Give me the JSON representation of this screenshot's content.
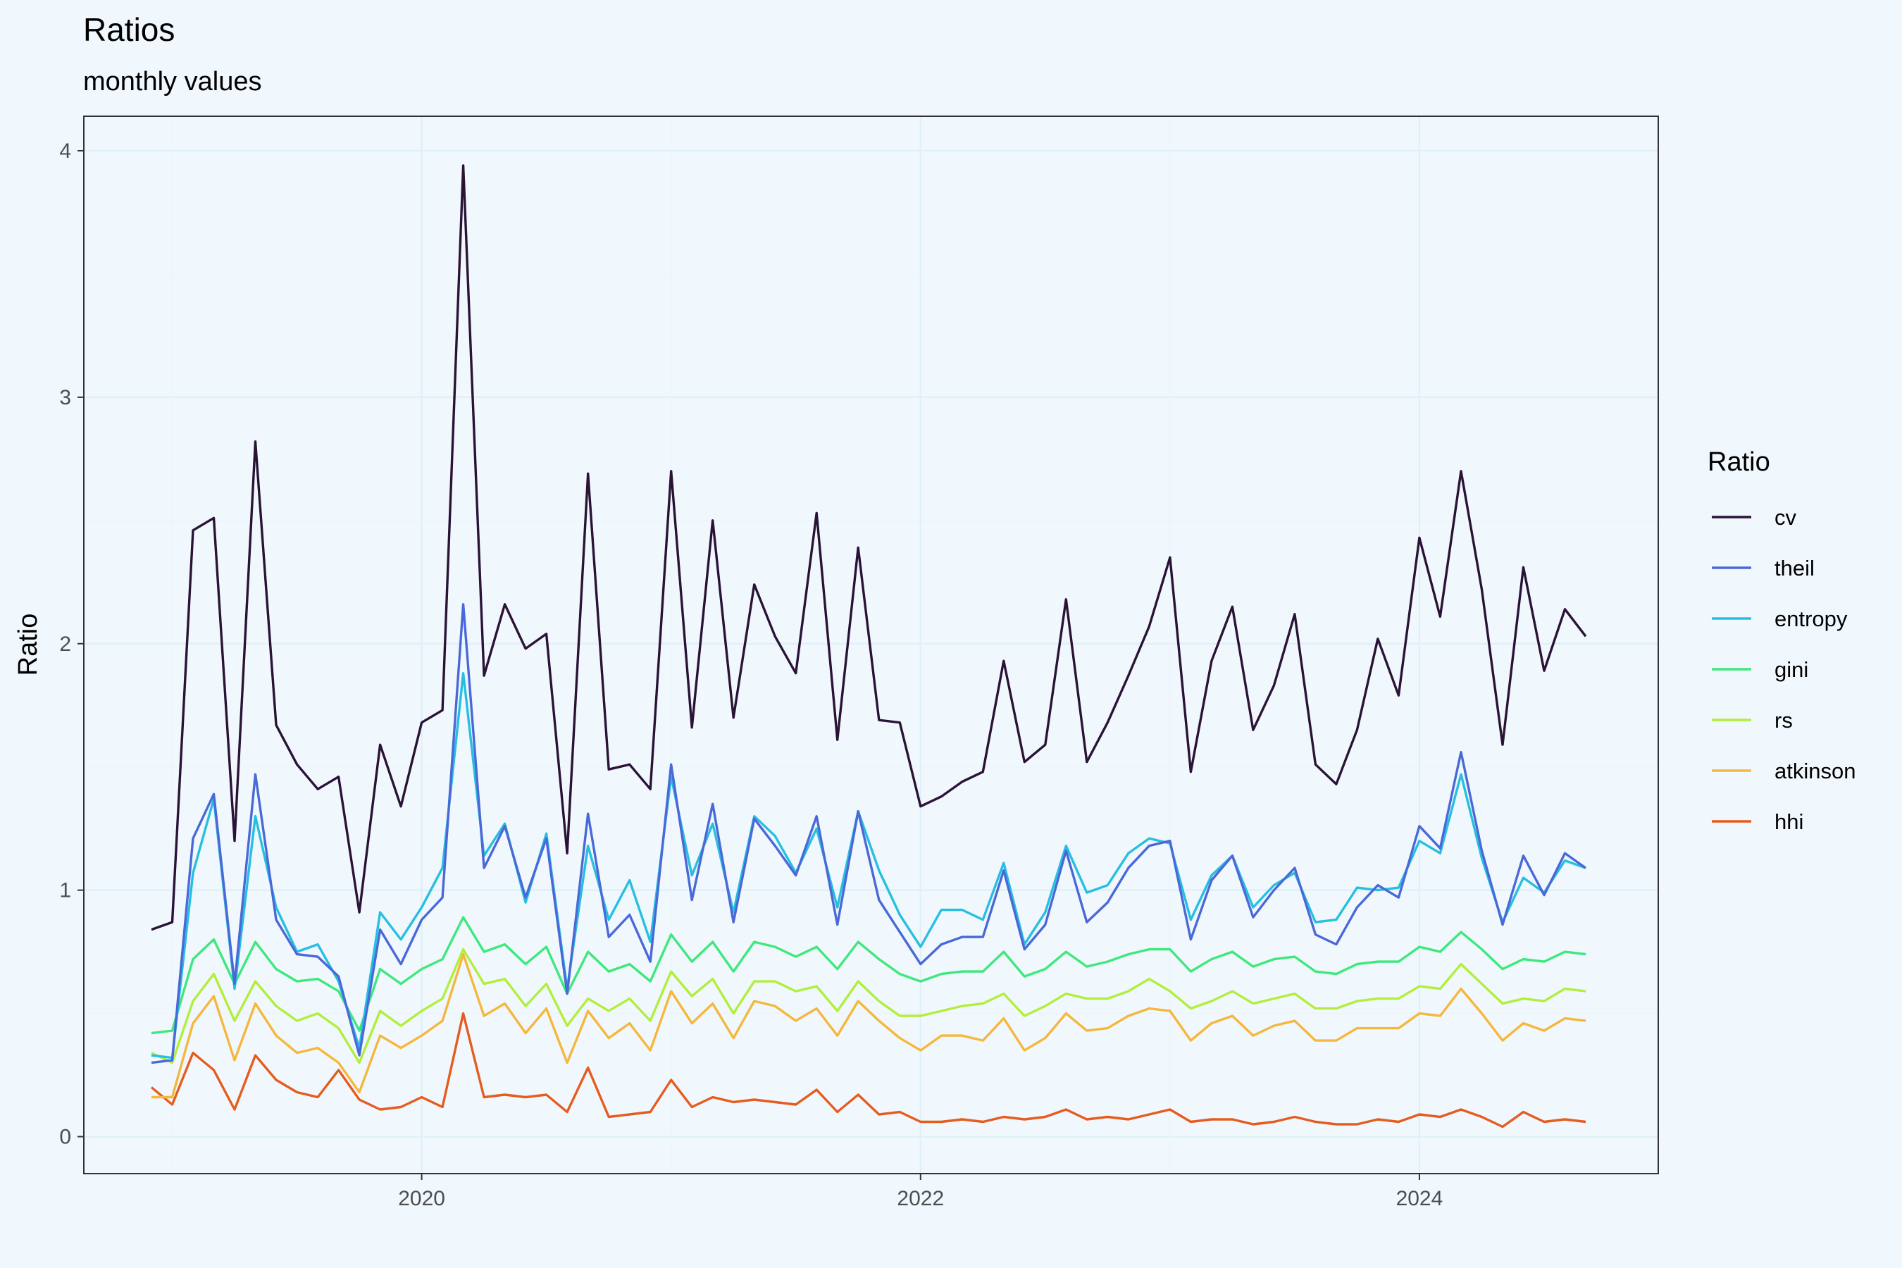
{
  "chart_data": {
    "type": "line",
    "title": "Ratios",
    "subtitle": "monthly values",
    "xlabel": "",
    "ylabel": "Ratio",
    "x_start": "2018-12",
    "x_ticks": [
      "2020",
      "2022",
      "2024"
    ],
    "y_ticks": [
      "0",
      "1",
      "2",
      "3",
      "4"
    ],
    "ylim": [
      -0.15,
      4.14
    ],
    "grid": true,
    "legend": {
      "title": "Ratio",
      "position": "right"
    },
    "series": [
      {
        "name": "cv",
        "color": "#2a1336",
        "values": [
          0.84,
          0.87,
          2.46,
          2.51,
          1.2,
          2.82,
          1.67,
          1.51,
          1.41,
          1.46,
          0.91,
          1.59,
          1.34,
          1.68,
          1.73,
          3.94,
          1.87,
          2.16,
          1.98,
          2.04,
          1.15,
          2.69,
          1.49,
          1.51,
          1.41,
          2.7,
          1.66,
          2.5,
          1.7,
          2.24,
          2.03,
          1.88,
          2.53,
          1.61,
          2.39,
          1.69,
          1.68,
          1.34,
          1.38,
          1.44,
          1.48,
          1.93,
          1.52,
          1.59,
          2.18,
          1.52,
          1.68,
          1.87,
          2.07,
          2.35,
          1.48,
          1.93,
          2.15,
          1.65,
          1.83,
          2.12,
          1.51,
          1.43,
          1.65,
          2.02,
          1.79,
          2.43,
          2.11,
          2.7,
          2.22,
          1.59,
          2.31,
          1.89,
          2.14,
          2.03
        ]
      },
      {
        "name": "theil",
        "color": "#4a69d8",
        "values": [
          0.3,
          0.31,
          1.21,
          1.39,
          0.62,
          1.47,
          0.88,
          0.74,
          0.73,
          0.65,
          0.33,
          0.84,
          0.7,
          0.88,
          0.97,
          2.16,
          1.09,
          1.26,
          0.97,
          1.21,
          0.58,
          1.31,
          0.81,
          0.9,
          0.71,
          1.51,
          0.96,
          1.35,
          0.87,
          1.29,
          1.18,
          1.06,
          1.3,
          0.86,
          1.32,
          0.96,
          0.83,
          0.7,
          0.78,
          0.81,
          0.81,
          1.08,
          0.76,
          0.86,
          1.16,
          0.87,
          0.95,
          1.09,
          1.18,
          1.2,
          0.8,
          1.04,
          1.14,
          0.89,
          1.0,
          1.09,
          0.82,
          0.78,
          0.93,
          1.02,
          0.97,
          1.26,
          1.17,
          1.56,
          1.16,
          0.86,
          1.14,
          0.98,
          1.15,
          1.09
        ]
      },
      {
        "name": "entropy",
        "color": "#27bfe0",
        "values": [
          0.33,
          0.32,
          1.07,
          1.37,
          0.6,
          1.3,
          0.93,
          0.75,
          0.78,
          0.63,
          0.36,
          0.91,
          0.8,
          0.93,
          1.09,
          1.88,
          1.14,
          1.27,
          0.95,
          1.23,
          0.6,
          1.18,
          0.88,
          1.04,
          0.79,
          1.46,
          1.06,
          1.27,
          0.91,
          1.3,
          1.22,
          1.07,
          1.25,
          0.93,
          1.32,
          1.08,
          0.9,
          0.77,
          0.92,
          0.92,
          0.88,
          1.11,
          0.78,
          0.91,
          1.18,
          0.99,
          1.02,
          1.15,
          1.21,
          1.19,
          0.88,
          1.06,
          1.14,
          0.93,
          1.02,
          1.07,
          0.87,
          0.88,
          1.01,
          1.0,
          1.01,
          1.2,
          1.15,
          1.47,
          1.13,
          0.87,
          1.05,
          0.99,
          1.12,
          1.09
        ]
      },
      {
        "name": "gini",
        "color": "#3ee87d",
        "values": [
          0.42,
          0.43,
          0.72,
          0.8,
          0.62,
          0.79,
          0.68,
          0.63,
          0.64,
          0.59,
          0.43,
          0.68,
          0.62,
          0.68,
          0.72,
          0.89,
          0.75,
          0.78,
          0.7,
          0.77,
          0.58,
          0.75,
          0.67,
          0.7,
          0.63,
          0.82,
          0.71,
          0.79,
          0.67,
          0.79,
          0.77,
          0.73,
          0.77,
          0.68,
          0.79,
          0.72,
          0.66,
          0.63,
          0.66,
          0.67,
          0.67,
          0.75,
          0.65,
          0.68,
          0.75,
          0.69,
          0.71,
          0.74,
          0.76,
          0.76,
          0.67,
          0.72,
          0.75,
          0.69,
          0.72,
          0.73,
          0.67,
          0.66,
          0.7,
          0.71,
          0.71,
          0.77,
          0.75,
          0.83,
          0.76,
          0.68,
          0.72,
          0.71,
          0.75,
          0.74
        ]
      },
      {
        "name": "rs",
        "color": "#b2ee3c",
        "values": [
          0.34,
          0.3,
          0.55,
          0.66,
          0.47,
          0.63,
          0.53,
          0.47,
          0.5,
          0.44,
          0.3,
          0.51,
          0.45,
          0.51,
          0.56,
          0.76,
          0.62,
          0.64,
          0.53,
          0.62,
          0.45,
          0.56,
          0.51,
          0.56,
          0.47,
          0.67,
          0.57,
          0.64,
          0.5,
          0.63,
          0.63,
          0.59,
          0.61,
          0.51,
          0.63,
          0.55,
          0.49,
          0.49,
          0.51,
          0.53,
          0.54,
          0.58,
          0.49,
          0.53,
          0.58,
          0.56,
          0.56,
          0.59,
          0.64,
          0.59,
          0.52,
          0.55,
          0.59,
          0.54,
          0.56,
          0.58,
          0.52,
          0.52,
          0.55,
          0.56,
          0.56,
          0.61,
          0.6,
          0.7,
          0.62,
          0.54,
          0.56,
          0.55,
          0.6,
          0.59
        ]
      },
      {
        "name": "atkinson",
        "color": "#f5b73c",
        "values": [
          0.16,
          0.16,
          0.46,
          0.57,
          0.31,
          0.54,
          0.41,
          0.34,
          0.36,
          0.3,
          0.18,
          0.41,
          0.36,
          0.41,
          0.47,
          0.74,
          0.49,
          0.54,
          0.42,
          0.52,
          0.3,
          0.51,
          0.4,
          0.46,
          0.35,
          0.59,
          0.46,
          0.54,
          0.4,
          0.55,
          0.53,
          0.47,
          0.52,
          0.41,
          0.55,
          0.47,
          0.4,
          0.35,
          0.41,
          0.41,
          0.39,
          0.48,
          0.35,
          0.4,
          0.5,
          0.43,
          0.44,
          0.49,
          0.52,
          0.51,
          0.39,
          0.46,
          0.49,
          0.41,
          0.45,
          0.47,
          0.39,
          0.39,
          0.44,
          0.44,
          0.44,
          0.5,
          0.49,
          0.6,
          0.5,
          0.39,
          0.46,
          0.43,
          0.48,
          0.47
        ]
      },
      {
        "name": "hhi",
        "color": "#e65b1e",
        "values": [
          0.2,
          0.13,
          0.34,
          0.27,
          0.11,
          0.33,
          0.23,
          0.18,
          0.16,
          0.27,
          0.15,
          0.11,
          0.12,
          0.16,
          0.12,
          0.5,
          0.16,
          0.17,
          0.16,
          0.17,
          0.1,
          0.28,
          0.08,
          0.09,
          0.1,
          0.23,
          0.12,
          0.16,
          0.14,
          0.15,
          0.14,
          0.13,
          0.19,
          0.1,
          0.17,
          0.09,
          0.1,
          0.06,
          0.06,
          0.07,
          0.06,
          0.08,
          0.07,
          0.08,
          0.11,
          0.07,
          0.08,
          0.07,
          0.09,
          0.11,
          0.06,
          0.07,
          0.07,
          0.05,
          0.06,
          0.08,
          0.06,
          0.05,
          0.05,
          0.07,
          0.06,
          0.09,
          0.08,
          0.11,
          0.08,
          0.04,
          0.1,
          0.06,
          0.07,
          0.06
        ]
      }
    ]
  }
}
